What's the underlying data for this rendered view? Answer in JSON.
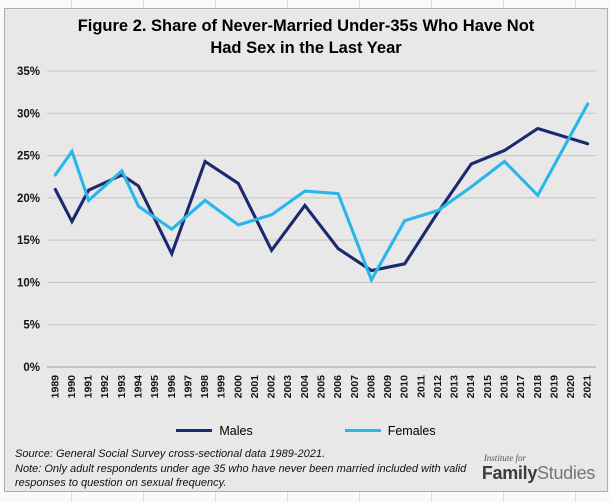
{
  "figure": {
    "title": "Figure 2. Share of Never-Married Under-35s Who Have Not Had Sex in the Last Year"
  },
  "chart_data": {
    "type": "line",
    "title": "Figure 2. Share of Never-Married Under-35s Who Have Not Had Sex in the Last Year",
    "xlabel": "",
    "ylabel": "",
    "grid": true,
    "legend_position": "bottom",
    "yaxis": {
      "min": 0,
      "max": 35,
      "step": 5,
      "unit": "%"
    },
    "y_ticks": [
      "0%",
      "5%",
      "10%",
      "15%",
      "20%",
      "25%",
      "30%",
      "35%"
    ],
    "x_ticks": [
      "1989",
      "1990",
      "1991",
      "1992",
      "1993",
      "1994",
      "1995",
      "1996",
      "1997",
      "1998",
      "1999",
      "2000",
      "2001",
      "2002",
      "2003",
      "2004",
      "2005",
      "2006",
      "2007",
      "2008",
      "2009",
      "2010",
      "2011",
      "2012",
      "2013",
      "2014",
      "2015",
      "2016",
      "2017",
      "2018",
      "2019",
      "2020",
      "2021"
    ],
    "survey_years": [
      1989,
      1990,
      1991,
      1993,
      1994,
      1996,
      1998,
      2000,
      2002,
      2004,
      2006,
      2008,
      2010,
      2012,
      2014,
      2016,
      2018,
      2021
    ],
    "series": [
      {
        "name": "Males",
        "color": "#1b2a6e",
        "values": [
          21.0,
          17.2,
          20.9,
          22.7,
          21.4,
          13.4,
          24.3,
          21.7,
          13.8,
          19.1,
          14.0,
          11.4,
          12.2,
          18.3,
          24.0,
          25.6,
          28.2,
          26.4
        ]
      },
      {
        "name": "Females",
        "color": "#29b6ea",
        "values": [
          22.7,
          25.5,
          19.7,
          23.2,
          19.0,
          16.3,
          19.7,
          16.8,
          18.0,
          20.8,
          20.5,
          10.3,
          17.3,
          18.5,
          21.3,
          24.3,
          20.3,
          31.1
        ]
      }
    ],
    "colors": {
      "grid": "#c4c4c4",
      "axis": "#a0a0a0",
      "background": "#e8e8e8",
      "tick_text": "#141414"
    }
  },
  "footer": {
    "source": "Source: General Social Survey cross-sectional data 1989-2021.",
    "note": "Note: Only adult respondents under age 35 who have never been married included with valid responses to question on sexual frequency.",
    "logo": {
      "institute_for": "Institute for",
      "family": "Family",
      "studies": "Studies"
    }
  }
}
